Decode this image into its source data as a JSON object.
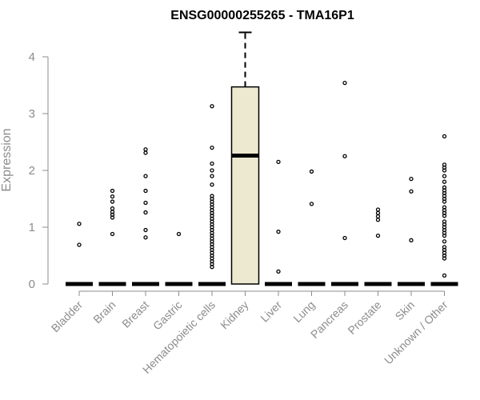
{
  "chart_data": {
    "type": "box",
    "title": "ENSG00000255265 - TMA16P1",
    "xlabel": "",
    "ylabel": "Expression",
    "ylim": [
      0,
      4.4
    ],
    "yticks": [
      0,
      1,
      2,
      3,
      4
    ],
    "grid": false,
    "colors": {
      "box_fill": "#ede8d0",
      "stroke": "#000000",
      "axis": "#8c8c8c",
      "title": "#000000"
    },
    "categories": [
      "Bladder",
      "Brain",
      "Breast",
      "Gastric",
      "Hematopoietic cells",
      "Kidney",
      "Liver",
      "Lung",
      "Pancreas",
      "Prostate",
      "Skin",
      "Unknown / Other"
    ],
    "boxes": [
      {
        "category": "Bladder",
        "q1": 0,
        "median": 0,
        "q3": 0,
        "whisker_low": 0,
        "whisker_high": 0,
        "outliers": [
          0.69,
          1.06
        ]
      },
      {
        "category": "Brain",
        "q1": 0,
        "median": 0,
        "q3": 0,
        "whisker_low": 0,
        "whisker_high": 0,
        "outliers": [
          0.88,
          1.17,
          1.22,
          1.27,
          1.33,
          1.45,
          1.54,
          1.64
        ]
      },
      {
        "category": "Breast",
        "q1": 0,
        "median": 0,
        "q3": 0,
        "whisker_low": 0,
        "whisker_high": 0,
        "outliers": [
          0.82,
          0.95,
          1.26,
          1.43,
          1.64,
          1.9,
          2.31,
          2.37
        ]
      },
      {
        "category": "Gastric",
        "q1": 0,
        "median": 0,
        "q3": 0,
        "whisker_low": 0,
        "whisker_high": 0,
        "outliers": [
          0.88
        ]
      },
      {
        "category": "Hematopoietic cells",
        "q1": 0,
        "median": 0,
        "q3": 0,
        "whisker_low": 0,
        "whisker_high": 0,
        "outliers": [
          0.3,
          0.35,
          0.4,
          0.45,
          0.5,
          0.55,
          0.6,
          0.65,
          0.7,
          0.75,
          0.8,
          0.85,
          0.9,
          0.95,
          1.0,
          1.05,
          1.1,
          1.15,
          1.2,
          1.25,
          1.3,
          1.35,
          1.4,
          1.45,
          1.5,
          1.55,
          1.75,
          1.9,
          2.0,
          2.12,
          2.4,
          3.13
        ]
      },
      {
        "category": "Kidney",
        "q1": 0,
        "median": 2.26,
        "q3": 3.47,
        "whisker_low": 0,
        "whisker_high": 4.43,
        "outliers": []
      },
      {
        "category": "Liver",
        "q1": 0,
        "median": 0,
        "q3": 0,
        "whisker_low": 0,
        "whisker_high": 0,
        "outliers": [
          0.22,
          0.92,
          2.15
        ]
      },
      {
        "category": "Lung",
        "q1": 0,
        "median": 0,
        "q3": 0,
        "whisker_low": 0,
        "whisker_high": 0,
        "outliers": [
          1.41,
          1.98
        ]
      },
      {
        "category": "Pancreas",
        "q1": 0,
        "median": 0,
        "q3": 0,
        "whisker_low": 0,
        "whisker_high": 0,
        "outliers": [
          0.81,
          2.25,
          3.54
        ]
      },
      {
        "category": "Prostate",
        "q1": 0,
        "median": 0,
        "q3": 0,
        "whisker_low": 0,
        "whisker_high": 0,
        "outliers": [
          0.85,
          1.13,
          1.19,
          1.25,
          1.31
        ]
      },
      {
        "category": "Skin",
        "q1": 0,
        "median": 0,
        "q3": 0,
        "whisker_low": 0,
        "whisker_high": 0,
        "outliers": [
          0.77,
          1.63,
          1.85
        ]
      },
      {
        "category": "Unknown / Other",
        "q1": 0,
        "median": 0,
        "q3": 0,
        "whisker_low": 0,
        "whisker_high": 0,
        "outliers": [
          0.15,
          0.45,
          0.5,
          0.55,
          0.6,
          0.65,
          0.75,
          0.85,
          0.9,
          0.95,
          1.0,
          1.05,
          1.1,
          1.2,
          1.25,
          1.3,
          1.35,
          1.45,
          1.5,
          1.55,
          1.6,
          1.65,
          1.7,
          1.8,
          1.9,
          2.0,
          2.05,
          2.1,
          2.6
        ]
      }
    ]
  }
}
